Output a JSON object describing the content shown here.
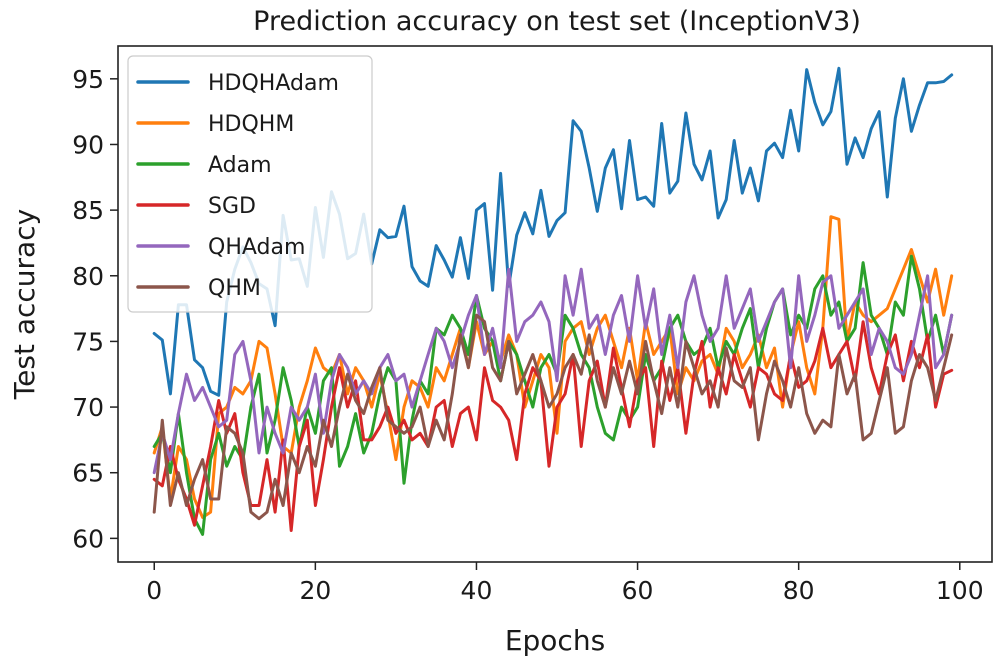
{
  "chart_data": {
    "type": "line",
    "title": "Prediction accuracy on test set (InceptionV3)",
    "xlabel": "Epochs",
    "ylabel": "Test accuracy",
    "xlim": [
      -4.5,
      104
    ],
    "ylim": [
      58.2,
      97.5
    ],
    "xticks": [
      0,
      20,
      40,
      60,
      80,
      100
    ],
    "yticks": [
      60,
      65,
      70,
      75,
      80,
      85,
      90,
      95
    ],
    "grid": false,
    "legend_position": "top-left",
    "x": [
      0,
      1,
      2,
      3,
      4,
      5,
      6,
      7,
      8,
      9,
      10,
      11,
      12,
      13,
      14,
      15,
      16,
      17,
      18,
      19,
      20,
      21,
      22,
      23,
      24,
      25,
      26,
      27,
      28,
      29,
      30,
      31,
      32,
      33,
      34,
      35,
      36,
      37,
      38,
      39,
      40,
      41,
      42,
      43,
      44,
      45,
      46,
      47,
      48,
      49,
      50,
      51,
      52,
      53,
      54,
      55,
      56,
      57,
      58,
      59,
      60,
      61,
      62,
      63,
      64,
      65,
      66,
      67,
      68,
      69,
      70,
      71,
      72,
      73,
      74,
      75,
      76,
      77,
      78,
      79,
      80,
      81,
      82,
      83,
      84,
      85,
      86,
      87,
      88,
      89,
      90,
      91,
      92,
      93,
      94,
      95,
      96,
      97,
      98,
      99
    ],
    "series": [
      {
        "name": "HDQHAdam",
        "color": "#1f77b4",
        "values": [
          75.6,
          75.1,
          71.0,
          77.8,
          77.8,
          73.6,
          73.0,
          71.2,
          70.9,
          78.0,
          80.5,
          82.2,
          81.0,
          79.4,
          79.0,
          76.2,
          84.6,
          81.2,
          81.3,
          79.2,
          85.2,
          81.4,
          86.4,
          84.7,
          81.3,
          81.7,
          84.7,
          80.9,
          83.5,
          82.9,
          83.0,
          85.3,
          80.7,
          79.6,
          79.2,
          82.3,
          81.2,
          79.9,
          82.9,
          79.8,
          85.0,
          85.5,
          78.9,
          87.8,
          79.2,
          83.1,
          84.8,
          83.2,
          86.5,
          83.0,
          84.2,
          84.8,
          91.8,
          91.0,
          88.2,
          84.9,
          88.2,
          89.6,
          85.1,
          90.3,
          85.8,
          86.0,
          85.3,
          91.6,
          86.3,
          87.2,
          92.4,
          88.5,
          87.3,
          89.5,
          84.4,
          85.8,
          90.3,
          86.3,
          88.2,
          85.7,
          89.5,
          90.1,
          89.0,
          92.6,
          89.5,
          95.7,
          93.2,
          91.5,
          92.5,
          95.8,
          88.5,
          90.5,
          89.0,
          91.2,
          92.5,
          86.0,
          92.0,
          95.0,
          91.0,
          93.0,
          94.7,
          94.7,
          94.8,
          95.3
        ]
      },
      {
        "name": "HDQHM",
        "color": "#ff7f0e",
        "values": [
          66.5,
          68.5,
          63.0,
          67.0,
          66.0,
          63.0,
          61.6,
          62.0,
          69.5,
          70.0,
          71.5,
          71.0,
          72.0,
          75.0,
          74.5,
          71.0,
          67.0,
          66.5,
          70.0,
          72.0,
          74.5,
          73.0,
          72.5,
          74.0,
          71.0,
          73.0,
          72.0,
          70.0,
          72.5,
          69.5,
          66.0,
          70.0,
          72.0,
          71.5,
          70.0,
          73.0,
          72.0,
          74.0,
          76.0,
          73.0,
          76.5,
          74.0,
          75.0,
          73.5,
          75.5,
          74.0,
          70.0,
          72.0,
          74.0,
          73.0,
          68.0,
          75.0,
          76.0,
          76.5,
          74.0,
          76.0,
          77.0,
          75.0,
          73.0,
          76.0,
          72.0,
          76.5,
          74.0,
          75.0,
          76.0,
          71.0,
          73.0,
          72.0,
          73.5,
          74.0,
          72.5,
          76.0,
          75.0,
          73.0,
          74.0,
          75.5,
          73.0,
          74.5,
          70.0,
          74.0,
          76.5,
          73.0,
          71.0,
          76.0,
          84.5,
          84.3,
          75.0,
          78.0,
          77.0,
          76.5,
          77.0,
          77.5,
          79.0,
          80.5,
          82.0,
          80.0,
          78.0,
          80.5,
          77.0,
          80.0
        ]
      },
      {
        "name": "Adam",
        "color": "#2ca02c",
        "values": [
          67.0,
          68.0,
          65.0,
          69.5,
          65.0,
          61.5,
          60.3,
          66.0,
          68.0,
          65.5,
          67.0,
          66.0,
          70.0,
          72.5,
          66.5,
          69.0,
          73.0,
          70.5,
          67.0,
          70.0,
          68.0,
          72.0,
          73.0,
          65.5,
          67.0,
          69.5,
          66.5,
          68.0,
          71.0,
          73.0,
          72.0,
          64.2,
          69.0,
          72.0,
          71.0,
          76.0,
          75.5,
          77.0,
          76.0,
          74.0,
          78.5,
          76.0,
          75.0,
          72.0,
          75.0,
          74.0,
          72.0,
          70.0,
          73.0,
          74.0,
          72.5,
          77.0,
          76.0,
          74.0,
          73.0,
          70.0,
          68.0,
          67.5,
          70.0,
          69.0,
          70.0,
          74.0,
          72.0,
          73.0,
          76.0,
          77.0,
          75.0,
          74.0,
          74.5,
          76.0,
          73.0,
          75.0,
          74.0,
          76.0,
          77.5,
          73.0,
          76.0,
          78.0,
          79.0,
          75.5,
          77.0,
          76.0,
          79.0,
          80.0,
          77.0,
          78.0,
          75.0,
          76.0,
          81.0,
          77.0,
          76.0,
          74.0,
          78.0,
          77.0,
          81.5,
          79.0,
          75.0,
          77.0,
          74.0,
          77.0
        ]
      },
      {
        "name": "SGD",
        "color": "#d62728",
        "values": [
          64.5,
          64.0,
          67.0,
          64.5,
          63.0,
          61.0,
          64.0,
          67.0,
          70.5,
          68.0,
          69.5,
          65.0,
          62.5,
          62.5,
          66.0,
          62.0,
          67.5,
          60.6,
          67.0,
          69.0,
          62.5,
          66.0,
          70.0,
          73.0,
          70.0,
          72.0,
          67.5,
          67.5,
          68.5,
          70.0,
          68.0,
          69.0,
          67.5,
          68.0,
          67.0,
          70.0,
          70.5,
          67.0,
          69.5,
          70.0,
          67.5,
          73.0,
          70.5,
          70.0,
          69.0,
          66.0,
          71.0,
          73.0,
          72.0,
          65.5,
          70.0,
          71.0,
          74.0,
          67.0,
          72.0,
          73.5,
          70.0,
          74.5,
          71.5,
          68.5,
          72.0,
          73.0,
          67.0,
          73.5,
          70.5,
          73.0,
          68.0,
          72.5,
          75.0,
          70.0,
          73.0,
          71.0,
          74.0,
          72.0,
          70.0,
          73.0,
          72.5,
          71.0,
          70.5,
          74.0,
          71.5,
          72.0,
          73.5,
          76.0,
          73.0,
          74.0,
          75.0,
          72.0,
          76.5,
          73.0,
          71.0,
          74.0,
          75.5,
          72.0,
          75.0,
          73.0,
          75.5,
          70.0,
          72.5,
          72.8
        ]
      },
      {
        "name": "QHAdam",
        "color": "#9467bd",
        "values": [
          65.0,
          68.0,
          66.0,
          69.5,
          72.5,
          70.5,
          71.5,
          70.0,
          68.5,
          69.0,
          74.0,
          75.0,
          72.0,
          66.5,
          70.0,
          68.0,
          66.5,
          70.0,
          69.0,
          70.0,
          72.5,
          68.0,
          72.0,
          74.0,
          73.0,
          71.0,
          72.0,
          71.0,
          73.0,
          74.0,
          72.0,
          72.5,
          70.0,
          72.0,
          74.0,
          76.0,
          75.0,
          73.0,
          75.0,
          77.0,
          78.5,
          74.0,
          76.0,
          73.0,
          80.5,
          75.0,
          76.5,
          77.0,
          78.0,
          76.5,
          72.0,
          80.0,
          77.0,
          80.5,
          76.0,
          77.0,
          74.0,
          77.0,
          78.5,
          75.0,
          80.0,
          76.0,
          79.0,
          74.0,
          77.0,
          73.0,
          78.0,
          80.0,
          77.0,
          75.0,
          76.0,
          80.0,
          76.0,
          77.5,
          79.0,
          75.0,
          76.5,
          78.0,
          79.0,
          73.0,
          80.0,
          75.0,
          77.0,
          79.5,
          80.0,
          76.0,
          77.0,
          78.0,
          79.0,
          74.0,
          76.0,
          75.0,
          73.0,
          72.5,
          74.0,
          77.0,
          80.0,
          73.0,
          74.0,
          77.0
        ]
      },
      {
        "name": "QHM",
        "color": "#8c564b",
        "values": [
          62.0,
          69.0,
          62.5,
          65.0,
          62.5,
          64.5,
          66.0,
          63.0,
          63.0,
          68.5,
          68.0,
          66.5,
          62.0,
          61.5,
          62.0,
          64.5,
          62.5,
          66.5,
          65.0,
          67.0,
          65.5,
          69.0,
          67.0,
          70.0,
          72.5,
          70.5,
          69.5,
          71.5,
          73.0,
          69.0,
          68.5,
          68.0,
          68.5,
          70.0,
          67.0,
          69.0,
          67.5,
          71.0,
          75.5,
          73.0,
          77.0,
          76.5,
          73.0,
          72.0,
          75.0,
          71.0,
          72.5,
          74.0,
          72.0,
          70.0,
          71.0,
          73.0,
          74.0,
          72.5,
          75.5,
          72.0,
          70.0,
          73.0,
          71.0,
          73.5,
          71.0,
          75.0,
          72.0,
          69.5,
          73.0,
          70.0,
          75.0,
          73.0,
          71.0,
          72.0,
          70.0,
          74.5,
          72.0,
          71.5,
          73.0,
          67.5,
          71.0,
          73.5,
          72.0,
          70.0,
          73.0,
          69.5,
          68.0,
          69.0,
          68.5,
          74.0,
          71.0,
          72.5,
          67.5,
          68.0,
          70.5,
          73.0,
          68.0,
          68.5,
          72.0,
          74.0,
          73.0,
          70.5,
          73.0,
          75.5
        ]
      }
    ]
  }
}
